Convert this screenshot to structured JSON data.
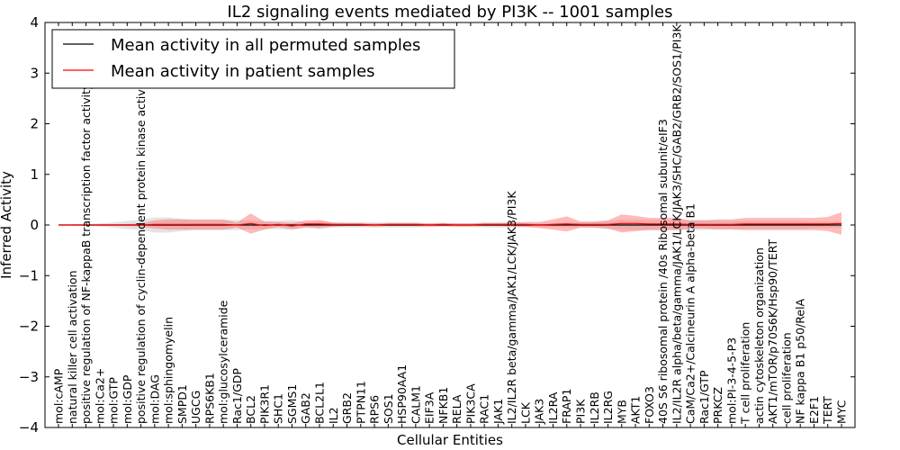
{
  "chart_data": {
    "type": "line",
    "title": "IL2 signaling events mediated by PI3K -- 1001 samples",
    "xlabel": "Cellular Entities",
    "ylabel": "Inferred Activity",
    "ylim": [
      -4,
      4
    ],
    "yticks": [
      -4,
      -3,
      -2,
      -1,
      0,
      1,
      2,
      3,
      4
    ],
    "legend_position": "top-left",
    "categories": [
      "mol:cAMP",
      "natural killer cell activation",
      "positive regulation of NF-kappaB transcription factor activity",
      "mol:Ca2+",
      "mol:GTP",
      "mol:GDP",
      "positive regulation of cyclin-dependent protein kinase activity",
      "mol:DAG",
      "mol:sphingomyelin",
      "SMPD1",
      "UGCG",
      "RPS6KB1",
      "mol:glucosylceramide",
      "Rac1/GDP",
      "BCL2",
      "PIK3R1",
      "SHC1",
      "SGMS1",
      "GAB2",
      "BCL2L1",
      "IL2",
      "GRB2",
      "PTPN11",
      "RPS6",
      "SOS1",
      "HSP90AA1",
      "CALM1",
      "EIF3A",
      "NFKB1",
      "RELA",
      "PIK3CA",
      "RAC1",
      "JAK1",
      "IL2/IL2R beta/gamma/JAK1/LCK/JAK3/PI3K",
      "LCK",
      "JAK3",
      "IL2RA",
      "FRAP1",
      "PI3K",
      "IL2RB",
      "IL2RG",
      "MYB",
      "AKT1",
      "FOXO3",
      "40S S6 ribosomal protein /40s Ribosomal subunit/eIF3",
      "IL2/IL2R alpha/beta/gamma/JAK1/LCK/JAK3/SHC/GAB2/GRB2/SOS1/PI3K",
      "CaM/Ca2+/Calcineurin A alpha-beta B1",
      "Rac1/GTP",
      "PRKCZ",
      "mol:PI-3-4-5-P3",
      "T cell proliferation",
      "actin cytoskeleton organization",
      "AKT1/mTOR/p70S6K/Hsp90/TERT",
      "cell proliferation",
      "NF kappa B1 p50/RelA",
      "E2F1",
      "TERT",
      "MYC"
    ],
    "series": [
      {
        "name": "Mean activity in all permuted samples",
        "color": "#000000",
        "values": [
          0,
          0,
          0,
          0,
          0,
          0,
          0,
          0,
          0,
          0,
          0,
          0,
          0,
          0,
          0,
          0,
          0,
          0,
          0,
          0,
          0,
          0,
          0,
          0,
          0,
          0,
          0,
          0,
          0,
          0,
          0,
          0,
          0,
          0,
          0,
          0,
          0,
          0,
          0,
          0,
          0,
          0,
          0,
          0,
          0,
          0,
          0,
          0,
          0,
          0,
          0,
          0,
          0,
          0,
          0,
          0,
          0,
          0
        ],
        "band": [
          0,
          0.01,
          0.02,
          0.03,
          0.05,
          0.08,
          0.1,
          0.15,
          0.15,
          0.12,
          0.1,
          0.1,
          0.1,
          0.1,
          0.08,
          0.08,
          0.08,
          0.1,
          0.05,
          0.08,
          0.05,
          0.05,
          0.05,
          0.05,
          0.05,
          0.05,
          0.05,
          0.04,
          0.04,
          0.04,
          0.04,
          0.05,
          0.05,
          0.05,
          0.04,
          0.04,
          0.04,
          0.05,
          0.05,
          0.06,
          0.08,
          0.1,
          0.1,
          0.1,
          0.1,
          0.1,
          0.1,
          0.1,
          0.08,
          0.08,
          0.08,
          0.08,
          0.08,
          0.08,
          0.08,
          0.06,
          0.06,
          0.06
        ]
      },
      {
        "name": "Mean activity in patient samples",
        "color": "#ff0000",
        "values": [
          0,
          0,
          0,
          0,
          0,
          0,
          0,
          0.01,
          0.01,
          0.01,
          0.01,
          0.01,
          0.01,
          0,
          0.03,
          -0.01,
          0.01,
          -0.02,
          0.02,
          0.02,
          0.01,
          0.01,
          0.01,
          0,
          0.01,
          0.01,
          0.01,
          0,
          0.01,
          0,
          0,
          0.01,
          0.01,
          0.01,
          0.01,
          0,
          0.01,
          0.02,
          0.01,
          0.01,
          0.01,
          0.03,
          0.03,
          0.02,
          0.02,
          0.02,
          0.01,
          0.01,
          0.01,
          0.01,
          0.02,
          0.02,
          0.02,
          0.02,
          0.02,
          0.02,
          0.02,
          0.03
        ],
        "band": [
          0,
          0.005,
          0.005,
          0.01,
          0.01,
          0.02,
          0.03,
          0.08,
          0.1,
          0.1,
          0.1,
          0.1,
          0.1,
          0.05,
          0.2,
          0.08,
          0.05,
          0.06,
          0.07,
          0.08,
          0.04,
          0.03,
          0.03,
          0.03,
          0.03,
          0.03,
          0.03,
          0.03,
          0.03,
          0.03,
          0.03,
          0.03,
          0.03,
          0.04,
          0.05,
          0.06,
          0.1,
          0.15,
          0.06,
          0.06,
          0.08,
          0.18,
          0.15,
          0.12,
          0.12,
          0.12,
          0.08,
          0.08,
          0.1,
          0.1,
          0.12,
          0.12,
          0.12,
          0.12,
          0.12,
          0.12,
          0.14,
          0.22
        ]
      }
    ]
  }
}
